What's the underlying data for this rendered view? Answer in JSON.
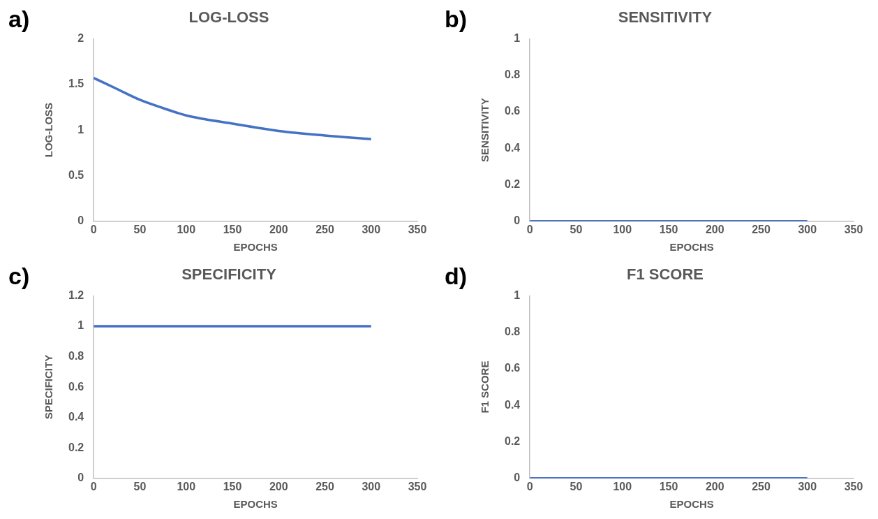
{
  "chart_data": [
    {
      "type": "line",
      "title": "LOG-LOSS",
      "xlabel": "EPOCHS",
      "ylabel": "LOG-LOSS",
      "annotations": [
        "a)"
      ],
      "x": [
        0,
        25,
        50,
        75,
        100,
        150,
        200,
        250,
        300
      ],
      "series": [
        {
          "color": "#4472c4",
          "values": [
            1.57,
            1.45,
            1.33,
            1.24,
            1.16,
            1.07,
            0.99,
            0.94,
            0.9
          ]
        }
      ],
      "xlim": [
        0,
        350
      ],
      "xticks": [
        0,
        50,
        100,
        150,
        200,
        250,
        300,
        350
      ],
      "ylim": [
        0,
        2
      ],
      "yticks": [
        0,
        0.5,
        1,
        1.5,
        2
      ]
    },
    {
      "type": "line",
      "title": "SENSITIVITY",
      "xlabel": "EPOCHS",
      "ylabel": "SENSITIVITY",
      "annotations": [
        "b)"
      ],
      "x": [
        0,
        50,
        100,
        150,
        200,
        250,
        300
      ],
      "series": [
        {
          "color": "#4472c4",
          "values": [
            0,
            0,
            0,
            0,
            0,
            0,
            0
          ]
        }
      ],
      "xlim": [
        0,
        350
      ],
      "xticks": [
        0,
        50,
        100,
        150,
        200,
        250,
        300,
        350
      ],
      "ylim": [
        0,
        1
      ],
      "yticks": [
        0,
        0.2,
        0.4,
        0.6,
        0.8,
        1
      ]
    },
    {
      "type": "line",
      "title": "SPECIFICITY",
      "xlabel": "EPOCHS",
      "ylabel": "SPECIFICITY",
      "annotations": [
        "c)"
      ],
      "x": [
        0,
        50,
        100,
        150,
        200,
        250,
        300
      ],
      "series": [
        {
          "color": "#4472c4",
          "values": [
            1,
            1,
            1,
            1,
            1,
            1,
            1
          ]
        }
      ],
      "xlim": [
        0,
        350
      ],
      "xticks": [
        0,
        50,
        100,
        150,
        200,
        250,
        300,
        350
      ],
      "ylim": [
        0,
        1.2
      ],
      "yticks": [
        0,
        0.2,
        0.4,
        0.6,
        0.8,
        1,
        1.2
      ]
    },
    {
      "type": "line",
      "title": "F1 SCORE",
      "xlabel": "EPOCHS",
      "ylabel": "F1 SCORE",
      "annotations": [
        "d)"
      ],
      "x": [
        0,
        50,
        100,
        150,
        200,
        250,
        300
      ],
      "series": [
        {
          "color": "#4472c4",
          "values": [
            0,
            0,
            0,
            0,
            0,
            0,
            0
          ]
        }
      ],
      "xlim": [
        0,
        350
      ],
      "xticks": [
        0,
        50,
        100,
        150,
        200,
        250,
        300,
        350
      ],
      "ylim": [
        0,
        1
      ],
      "yticks": [
        0,
        0.2,
        0.4,
        0.6,
        0.8,
        1
      ]
    }
  ]
}
